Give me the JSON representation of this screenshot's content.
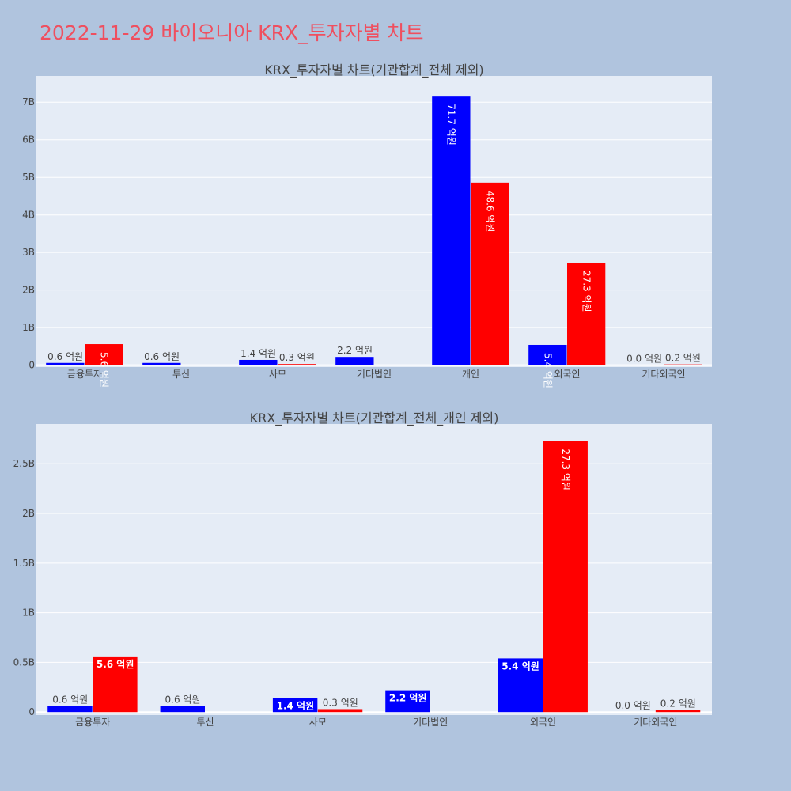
{
  "page": {
    "title": "2022-11-29 바이오니아 KRX_투자자별 차트"
  },
  "colors": {
    "background": "#b0c4de",
    "plot_bg": "#e5ecf6",
    "buy": "#0000ff",
    "sell": "#ff0000",
    "title": "#ef4f5f"
  },
  "chart_data": [
    {
      "type": "bar",
      "title": "KRX_투자자별 차트(기관합계_전체 제외)",
      "categories": [
        "금융투자",
        "투신",
        "사모",
        "기타법인",
        "개인",
        "외국인",
        "기타외국인"
      ],
      "series": [
        {
          "values": [
            60000000,
            60000000,
            140000000,
            220000000,
            7170000000,
            540000000,
            0
          ],
          "labels": [
            "0.6 억원",
            "0.6 억원",
            "1.4 억원",
            "2.2 억원",
            "71.7 억원",
            "5.4 억원",
            "0.0 억원"
          ]
        },
        {
          "values": [
            560000000,
            0,
            30000000,
            0,
            4860000000,
            2730000000,
            20000000
          ],
          "labels": [
            "5.6 억원",
            "",
            "0.3 억원",
            "",
            "48.6 억원",
            "27.3 억원",
            "0.2 억원"
          ]
        }
      ],
      "ylim": [
        -50000000,
        7700000000
      ],
      "yticks": [
        0,
        1000000000,
        2000000000,
        3000000000,
        4000000000,
        5000000000,
        6000000000,
        7000000000
      ],
      "ytick_labels": [
        "0",
        "1B",
        "2B",
        "3B",
        "4B",
        "5B",
        "6B",
        "7B"
      ],
      "grid": true
    },
    {
      "type": "bar",
      "title": "KRX_투자자별 차트(기관합계_전체_개인 제외)",
      "categories": [
        "금융투자",
        "투신",
        "사모",
        "기타법인",
        "외국인",
        "기타외국인"
      ],
      "series": [
        {
          "values": [
            60000000,
            60000000,
            140000000,
            220000000,
            540000000,
            0
          ],
          "labels": [
            "0.6 억원",
            "0.6 억원",
            "1.4 억원",
            "2.2 억원",
            "5.4 억원",
            "0.0 억원"
          ]
        },
        {
          "values": [
            560000000,
            0,
            30000000,
            0,
            2730000000,
            20000000
          ],
          "labels": [
            "5.6 억원",
            "",
            "0.3 억원",
            "",
            "27.3 억원",
            "0.2 억원"
          ]
        }
      ],
      "ylim": [
        -30000000,
        2900000000
      ],
      "yticks": [
        0,
        500000000,
        1000000000,
        1500000000,
        2000000000,
        2500000000
      ],
      "ytick_labels": [
        "0",
        "0.5B",
        "1B",
        "1.5B",
        "2B",
        "2.5B"
      ],
      "grid": true
    }
  ]
}
